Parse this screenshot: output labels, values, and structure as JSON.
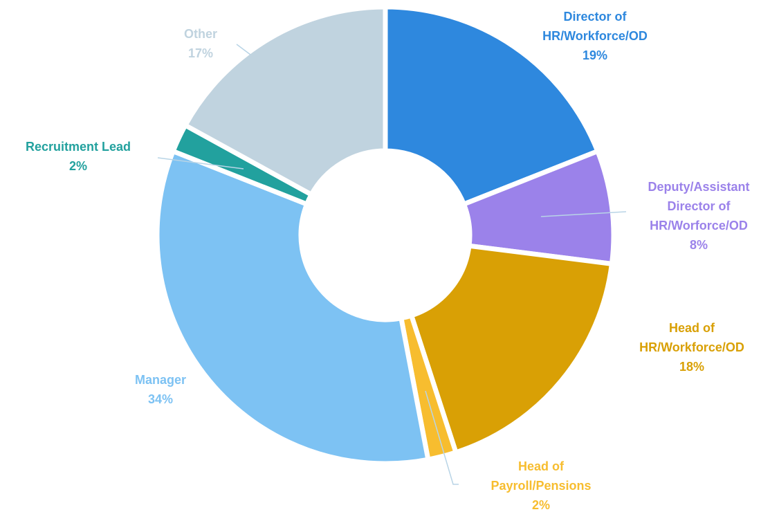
{
  "chart_data": {
    "type": "donut",
    "categories": [
      "Director of\nHR/Workforce/OD",
      "Deputy/Assistant\nDirector of\nHR/Worforce/OD",
      "Head of\nHR/Workforce/OD",
      "Head of\nPayroll/Pensions",
      "Manager",
      "Recruitment Lead",
      "Other"
    ],
    "values": [
      19,
      8,
      18,
      2,
      34,
      2,
      17
    ],
    "value_labels": [
      "19%",
      "8%",
      "18%",
      "2%",
      "34%",
      "2%",
      "17%"
    ],
    "colors": [
      "#2e88de",
      "#9b82ea",
      "#d9a005",
      "#f7bd2f",
      "#7dc2f3",
      "#22a19e",
      "#c0d3df"
    ]
  }
}
